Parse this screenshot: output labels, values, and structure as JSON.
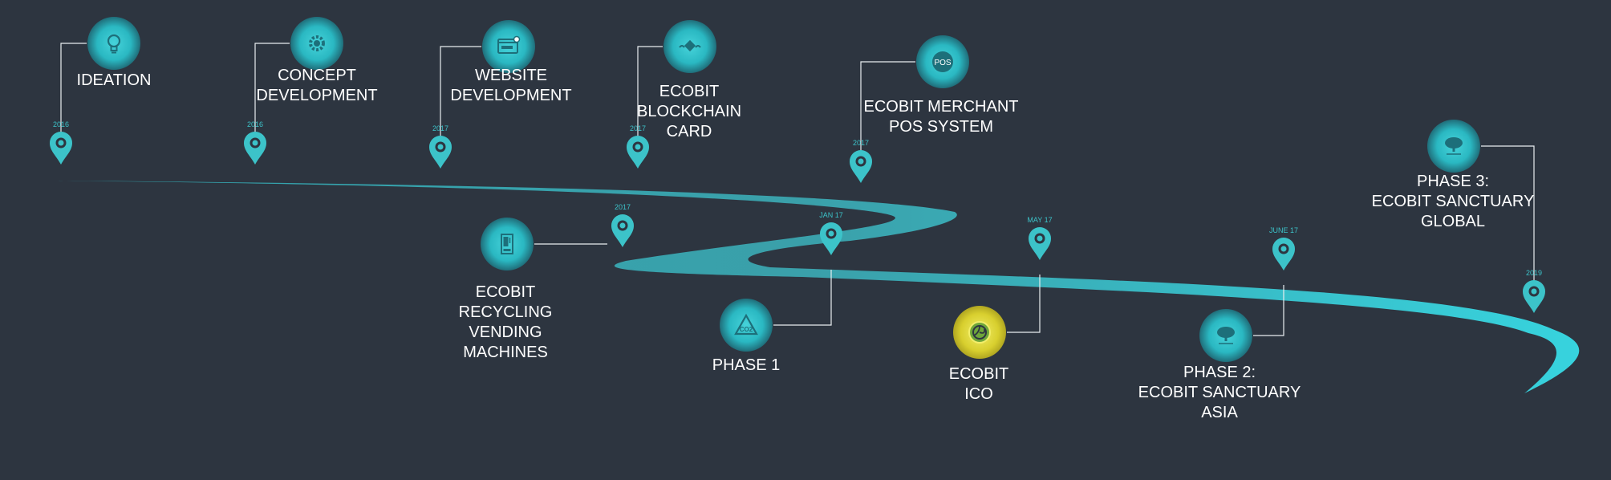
{
  "colors": {
    "background": "#2d3540",
    "accent": "#3cc3c9",
    "text": "#ffffff",
    "ico": "#d8cf2e"
  },
  "milestones": [
    {
      "id": "ideation",
      "date": "2016",
      "label": [
        "IDEATION"
      ],
      "icon": "lightbulb-icon"
    },
    {
      "id": "concept",
      "date": "2016",
      "label": [
        "CONCEPT",
        "DEVELOPMENT"
      ],
      "icon": "gear-icon"
    },
    {
      "id": "website",
      "date": "2017",
      "label": [
        "WEBSITE",
        "DEVELOPMENT"
      ],
      "icon": "browser-icon"
    },
    {
      "id": "card",
      "date": "2017",
      "label": [
        "ECOBIT",
        "BLOCKCHAIN",
        "CARD"
      ],
      "icon": "blockchain-icon"
    },
    {
      "id": "pos",
      "date": "2017",
      "label": [
        "ECOBIT MERCHANT",
        "POS SYSTEM"
      ],
      "icon": "pos-icon",
      "icon_text": "POS"
    },
    {
      "id": "vending",
      "date": "2017",
      "label": [
        "ECOBIT",
        "RECYCLING",
        "VENDING",
        "MACHINES"
      ],
      "icon": "vending-machine-icon"
    },
    {
      "id": "phase1",
      "date": "JAN 17",
      "label": [
        "PHASE 1"
      ],
      "icon": "co2-icon"
    },
    {
      "id": "ico",
      "date": "MAY 17",
      "label": [
        "ECOBIT",
        "ICO"
      ],
      "icon": "ecobit-coin-icon"
    },
    {
      "id": "phase2",
      "date": "JUNE 17",
      "label": [
        "PHASE 2:",
        "ECOBIT SANCTUARY",
        "ASIA"
      ],
      "icon": "tree-icon"
    },
    {
      "id": "phase3",
      "date": "2019",
      "label": [
        "PHASE 3:",
        "ECOBIT SANCTUARY",
        "GLOBAL"
      ],
      "icon": "tree-icon"
    }
  ]
}
